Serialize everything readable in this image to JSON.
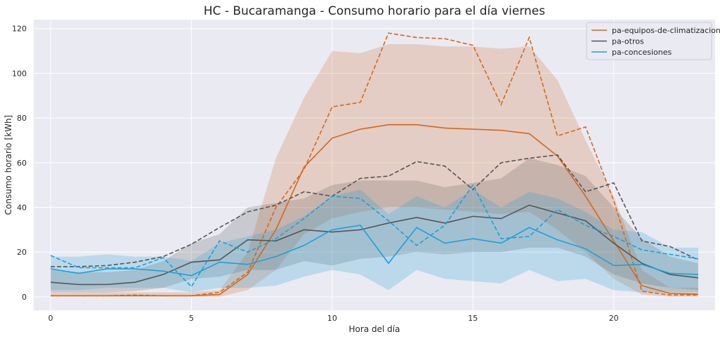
{
  "chart_data": {
    "type": "line",
    "title": "HC - Bucaramanga - Consumo horario para el día viernes",
    "xlabel": "Hora del día",
    "ylabel": "Consumo horario [kWh]",
    "xlim": [
      -0.6,
      23.6
    ],
    "ylim": [
      -6,
      124
    ],
    "xticks": [
      0,
      5,
      10,
      15,
      20
    ],
    "yticks": [
      0,
      20,
      40,
      60,
      80,
      100,
      120
    ],
    "grid": true,
    "legend_position": "top-right",
    "x": [
      0,
      1,
      2,
      3,
      4,
      5,
      6,
      7,
      8,
      9,
      10,
      11,
      12,
      13,
      14,
      15,
      16,
      17,
      18,
      19,
      20,
      21,
      22,
      23
    ],
    "series": [
      {
        "name": "pa-equipos-de-climatizacion",
        "color": "#d2691e",
        "mean": [
          0.5,
          0.5,
          0.5,
          0.5,
          0.5,
          0.5,
          1,
          10,
          30,
          58,
          71,
          75,
          77,
          77,
          75.5,
          75,
          74.5,
          73,
          63,
          45,
          25,
          5,
          1.5,
          1.2
        ],
        "dashed": [
          0.5,
          0.5,
          0.5,
          0.8,
          0.5,
          0.5,
          2,
          11,
          40,
          57,
          85,
          87,
          118,
          116,
          115.5,
          112.5,
          86,
          116,
          72,
          76,
          43,
          2.5,
          0.8,
          0.8
        ],
        "band_low": [
          0,
          0,
          0,
          0,
          0,
          0,
          0,
          3,
          12,
          28,
          35,
          38,
          40,
          40,
          39,
          38,
          37,
          38,
          30,
          20,
          8,
          1,
          0,
          0
        ],
        "band_high": [
          2,
          2,
          2,
          2,
          2,
          2,
          3,
          20,
          62,
          89,
          110,
          109,
          113,
          113,
          112,
          112,
          111,
          112,
          97,
          70,
          45,
          12,
          4,
          4
        ]
      },
      {
        "name": "pa-otros",
        "color": "#555555",
        "mean": [
          6.5,
          5.5,
          5.5,
          6.5,
          10,
          15.5,
          16.5,
          25.5,
          25,
          30,
          29,
          30,
          33,
          35.5,
          33,
          36,
          35,
          41,
          37.5,
          34,
          24,
          15,
          10,
          8.5
        ],
        "dashed": [
          13.5,
          13.5,
          14,
          15.5,
          18,
          23.5,
          31,
          38,
          41,
          47,
          45,
          53,
          54,
          60.5,
          58.5,
          48,
          60,
          62,
          63.5,
          47,
          51,
          25,
          22.5,
          16.5
        ],
        "band_low": [
          2,
          2,
          2,
          2.5,
          4,
          8,
          9,
          12,
          12,
          16,
          14,
          17,
          18,
          20,
          19,
          20,
          20,
          22,
          22,
          18,
          10,
          6,
          4,
          3
        ],
        "band_high": [
          12,
          11,
          11,
          12,
          16,
          24,
          28,
          40,
          42,
          44,
          50,
          52,
          52,
          52,
          49,
          51,
          53,
          62,
          59,
          54,
          40,
          26,
          18,
          15
        ],
        "ci_series": true
      },
      {
        "name": "pa-concesiones",
        "color": "#1ba1d8",
        "mean": [
          12.5,
          10.5,
          12.5,
          12.5,
          11.5,
          9.5,
          15.5,
          14.5,
          18,
          23,
          30,
          32,
          15,
          31,
          24,
          26,
          24,
          31,
          25.5,
          21.5,
          14,
          14.5,
          10.5,
          10
        ],
        "dashed": [
          18.5,
          13,
          13,
          13,
          17.5,
          4.5,
          25,
          20,
          26,
          35,
          45,
          44,
          34,
          23,
          32,
          50,
          26,
          27,
          39,
          32,
          27,
          21,
          19,
          17
        ],
        "band_low": [
          3,
          3,
          4,
          4,
          4,
          2,
          4,
          4,
          5,
          9,
          12,
          10,
          3,
          12,
          8,
          7,
          6,
          12,
          7,
          8,
          3,
          2,
          2,
          2
        ],
        "band_high": [
          18,
          18,
          19,
          18,
          18,
          16,
          24,
          27,
          30,
          36,
          45,
          48,
          37,
          45,
          40,
          48,
          40,
          47,
          44,
          38,
          30,
          29,
          22,
          22
        ]
      }
    ]
  }
}
